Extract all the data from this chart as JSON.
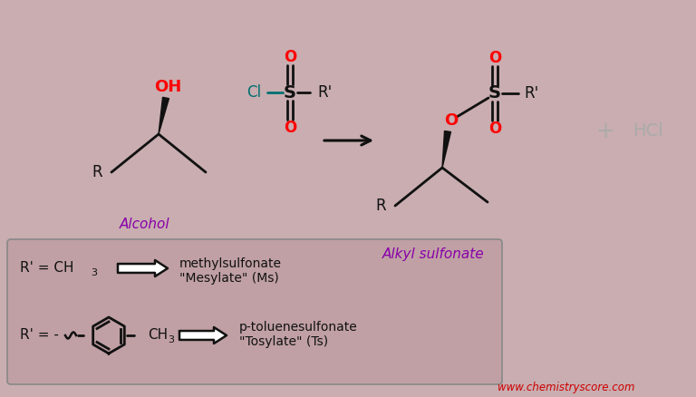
{
  "bg_color": "#c9adb0",
  "box_facecolor": "#c0a0a4",
  "box_edgecolor": "#888888",
  "alcohol_label": "Alcohol",
  "sulfonate_label": "Alkyl sulfonate",
  "label_color": "#8800aa",
  "red_color": "#ff0000",
  "green_color": "#007070",
  "dark_color": "#111111",
  "gray_color": "#aaaaaa",
  "website": "www.chemistryscore.com",
  "website_color": "#cc0000",
  "mesylate_line1": "methylsulfonate",
  "mesylate_line2": "\"Mesylate\" (Ms)",
  "tosylate_line1": "p-toluenesulfonate",
  "tosylate_line2": "\"Tosylate\" (Ts)"
}
